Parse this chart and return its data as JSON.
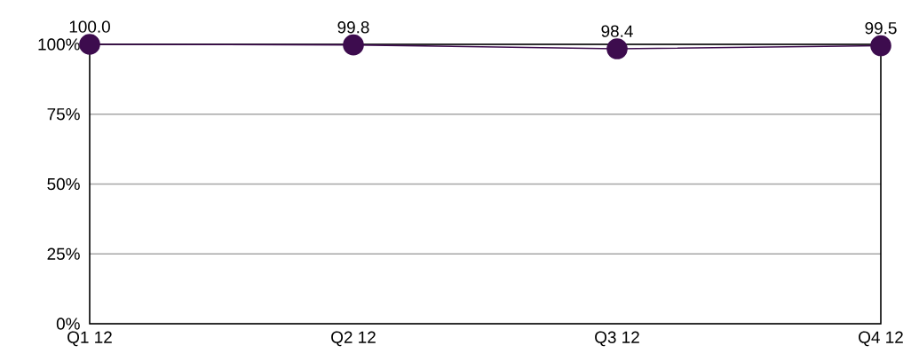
{
  "chart_data": {
    "type": "line",
    "categories": [
      "Q1 12",
      "Q2 12",
      "Q3 12",
      "Q4 12"
    ],
    "values": [
      100.0,
      99.8,
      98.4,
      99.5
    ],
    "value_labels": [
      "100.0",
      "99.8",
      "98.4",
      "99.5"
    ],
    "color": "#3d0c4e",
    "marker": "circle",
    "grid": "y",
    "ylim": [
      0,
      100
    ],
    "yticks": [
      {
        "value": 0,
        "label": "0%"
      },
      {
        "value": 25,
        "label": "25%"
      },
      {
        "value": 50,
        "label": "50%"
      },
      {
        "value": 75,
        "label": "75%"
      },
      {
        "value": 100,
        "label": "100%"
      }
    ]
  }
}
